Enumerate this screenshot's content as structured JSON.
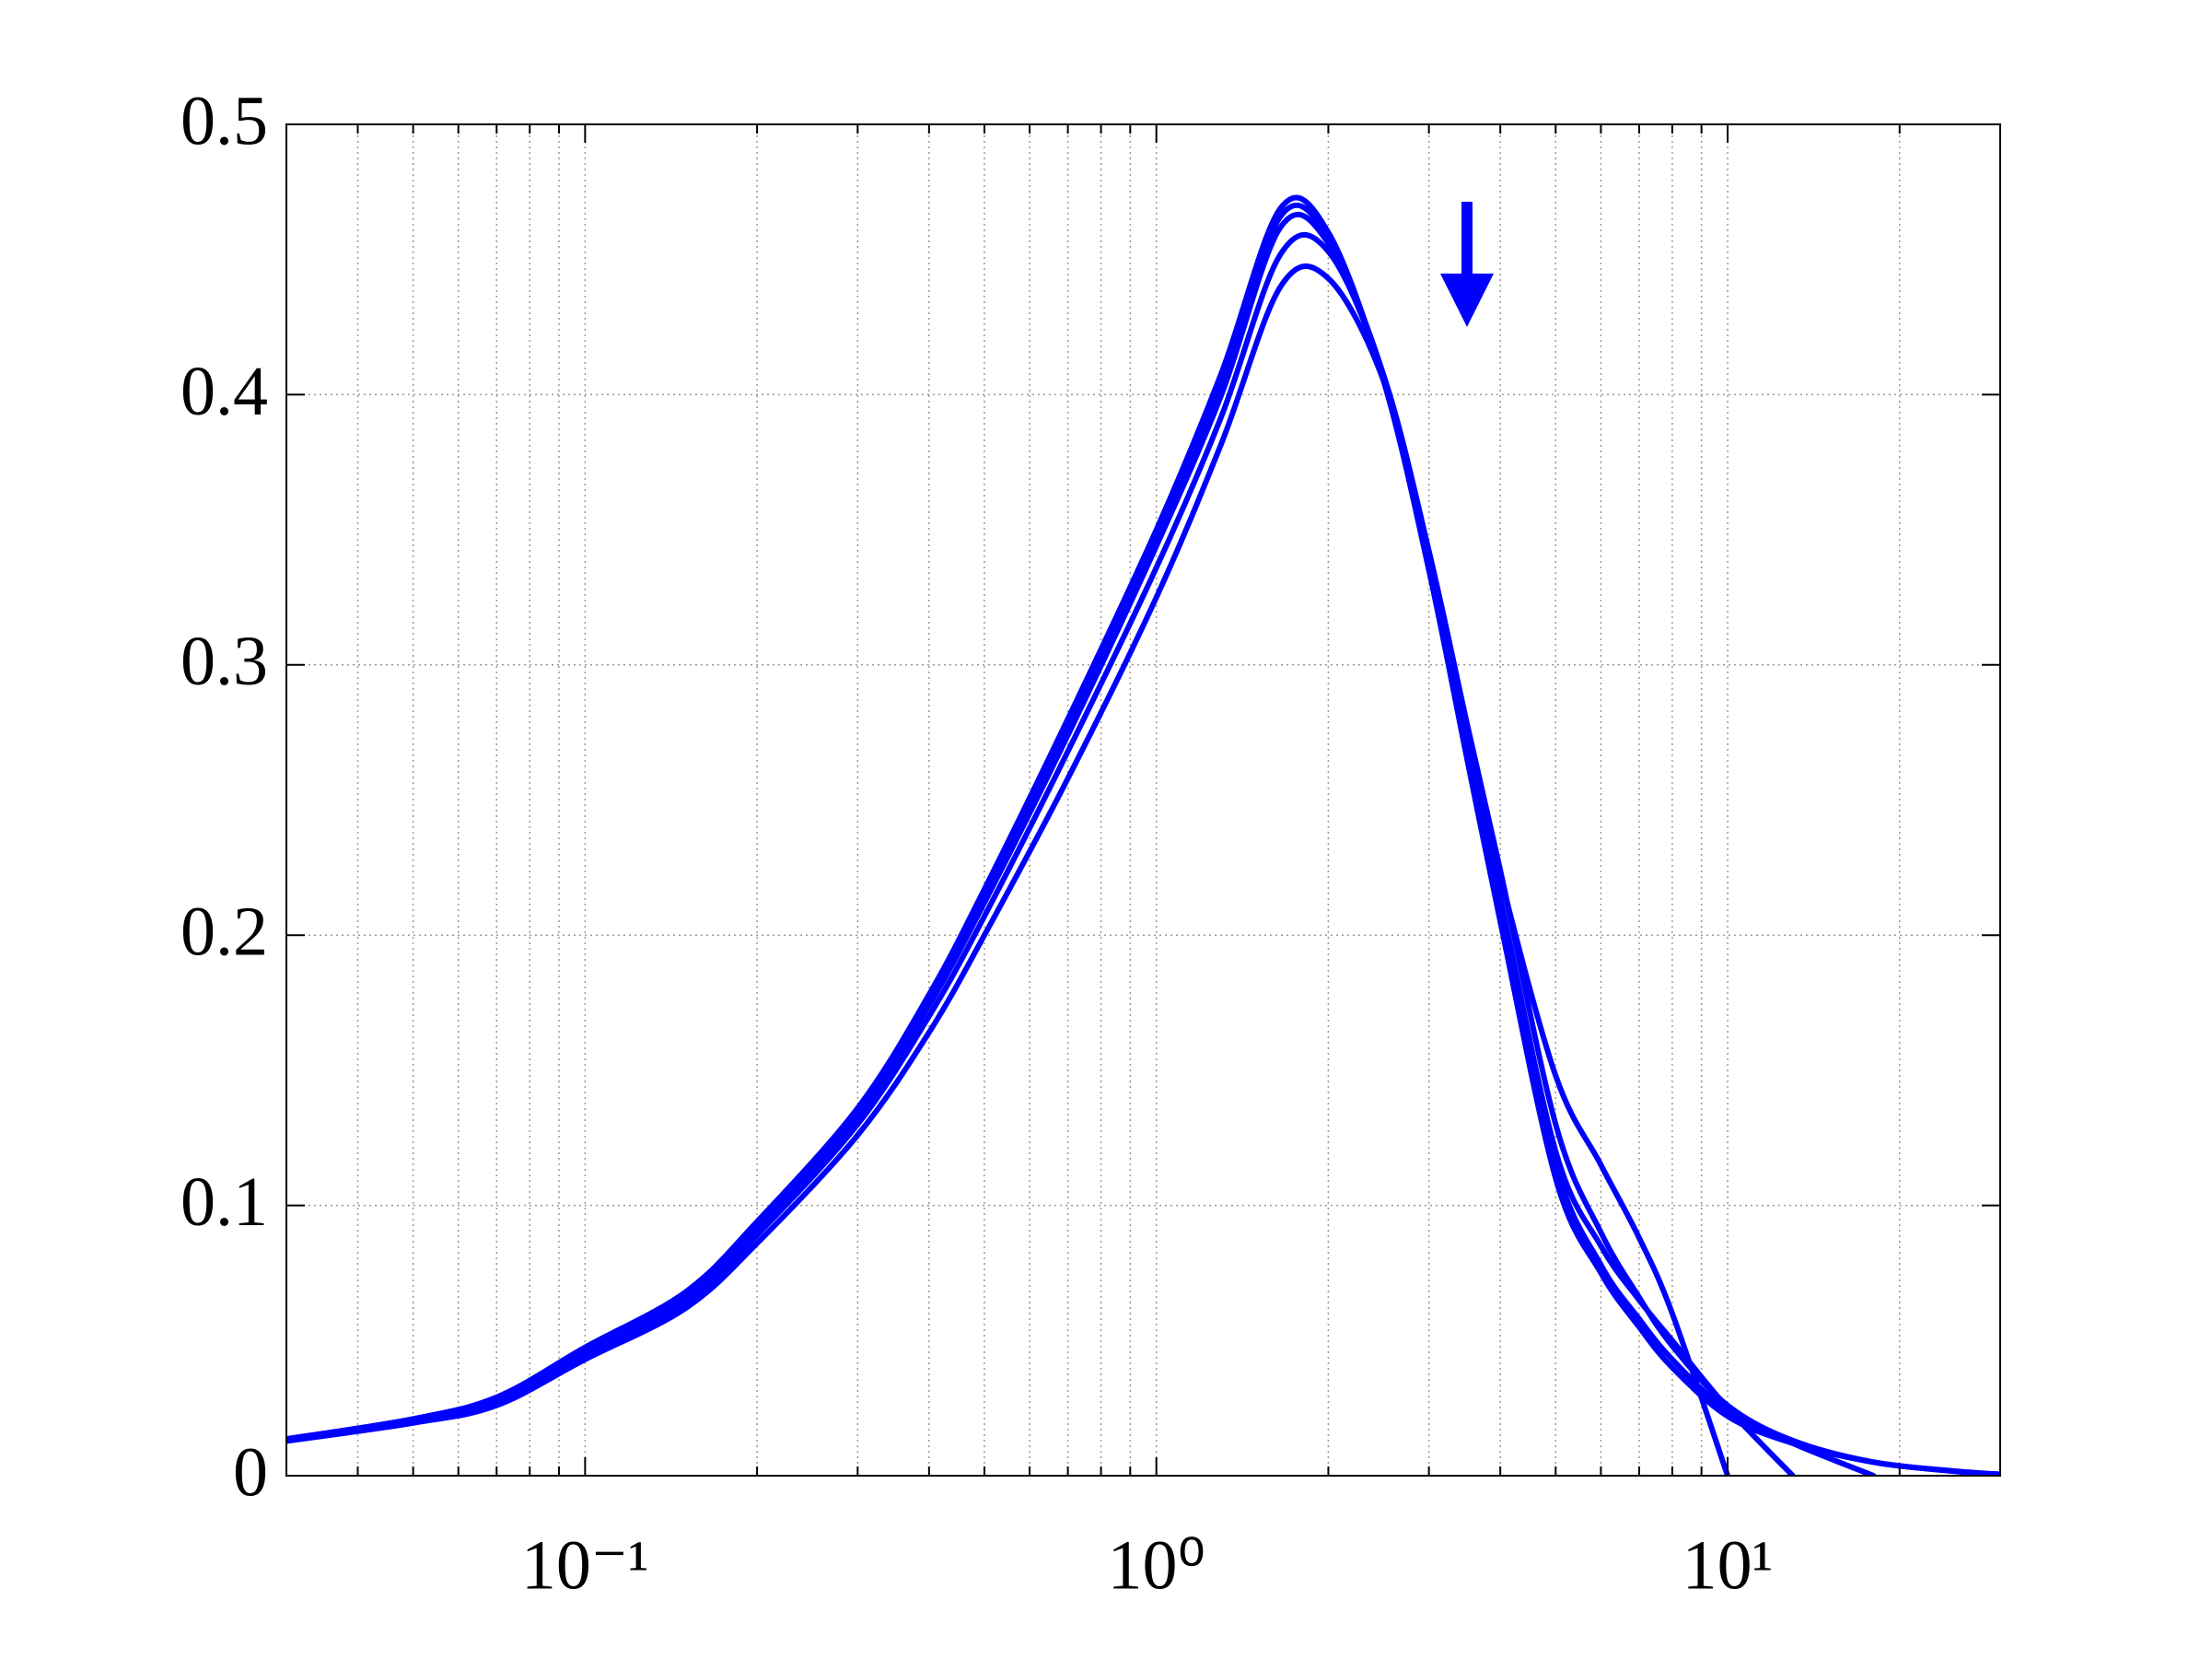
{
  "chart_data": {
    "type": "line",
    "x": [
      0.03,
      0.05,
      0.07,
      0.1,
      0.15,
      0.2,
      0.3,
      0.4,
      0.5,
      0.7,
      1,
      1.3,
      1.65,
      2,
      2.5,
      3,
      3.5,
      4,
      5,
      6,
      7,
      8,
      10,
      13,
      18,
      25,
      30
    ],
    "series": [
      {
        "color": "#0000ff",
        "values": [
          0.0136,
          0.021,
          0.029,
          0.0475,
          0.068,
          0.094,
          0.136,
          0.178,
          0.217,
          0.28,
          0.35,
          0.408,
          0.469,
          0.46,
          0.405,
          0.335,
          0.265,
          0.205,
          0.11,
          0.075,
          0.055,
          0.04,
          0.022,
          0.012,
          0.005,
          0.0016,
          0.0005
        ]
      },
      {
        "color": "#0000ff",
        "values": [
          0.0135,
          0.021,
          0.029,
          0.047,
          0.067,
          0.093,
          0.135,
          0.176,
          0.215,
          0.278,
          0.348,
          0.405,
          0.466,
          0.458,
          0.406,
          0.337,
          0.268,
          0.21,
          0.115,
          0.078,
          0.058,
          0.043,
          0.024,
          0.012,
          0,
          null,
          null
        ]
      },
      {
        "color": "#0000ff",
        "values": [
          0.0134,
          0.0205,
          0.028,
          0.046,
          0.066,
          0.091,
          0.133,
          0.174,
          0.212,
          0.274,
          0.344,
          0.4,
          0.462,
          0.456,
          0.407,
          0.339,
          0.271,
          0.214,
          0.12,
          0.085,
          0.065,
          0.05,
          0.025,
          0,
          null,
          null,
          null
        ]
      },
      {
        "color": "#0000ff",
        "values": [
          0.013,
          0.02,
          0.027,
          0.045,
          0.064,
          0.089,
          0.13,
          0.17,
          0.207,
          0.268,
          0.336,
          0.392,
          0.452,
          0.453,
          0.407,
          0.342,
          0.276,
          0.222,
          0.148,
          0.115,
          0.088,
          0.06,
          0,
          null,
          null,
          null,
          null
        ]
      },
      {
        "color": "#0000ff",
        "values": [
          0.0128,
          0.0195,
          0.026,
          0.043,
          0.062,
          0.086,
          0.126,
          0.164,
          0.2,
          0.258,
          0.325,
          0.382,
          0.44,
          0.443,
          0.405,
          0.342,
          0.278,
          0.224,
          0.13,
          0.09,
          0.066,
          0.048,
          0.026,
          0.013,
          0.005,
          0.0017,
          0.0005
        ]
      }
    ],
    "xscale": "log",
    "xlim": [
      0.03,
      30
    ],
    "xticks": [
      {
        "value": 0.1,
        "label": "10⁻¹"
      },
      {
        "value": 1,
        "label": "10⁰"
      },
      {
        "value": 10,
        "label": "10¹"
      }
    ],
    "ylim": [
      0,
      0.5
    ],
    "yticks": [
      0,
      0.1,
      0.2,
      0.3,
      0.4,
      0.5
    ],
    "grid": true,
    "minor_grid": true
  }
}
